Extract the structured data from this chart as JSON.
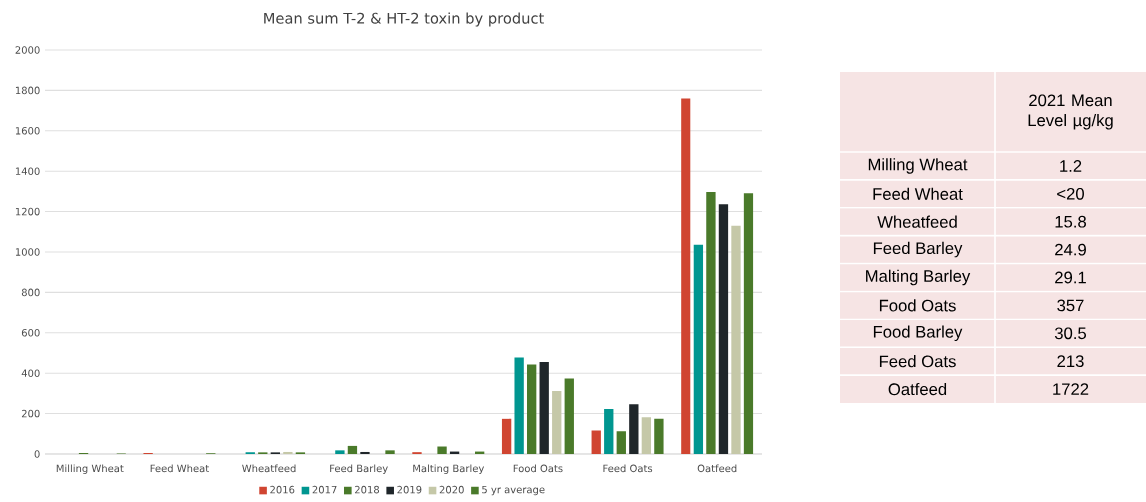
{
  "chart_data": [
    {
      "type": "bar",
      "title": "Mean sum T-2 & HT-2 toxin by product",
      "categories": [
        "Milling Wheat",
        "Feed Wheat",
        "Wheatfeed",
        "Feed Barley",
        "Malting Barley",
        "Food Oats",
        "Feed Oats",
        "Oatfeed"
      ],
      "series": [
        {
          "name": "2016",
          "color": "#d04531",
          "values": [
            0,
            5,
            0,
            0,
            9,
            174,
            116,
            1760
          ]
        },
        {
          "name": "2017",
          "color": "#009690",
          "values": [
            null,
            0,
            8,
            18,
            null,
            478,
            223,
            1036
          ]
        },
        {
          "name": "2018",
          "color": "#4a7a2a",
          "values": [
            5,
            0,
            8,
            40,
            37,
            443,
            112,
            1297
          ]
        },
        {
          "name": "2019",
          "color": "#1f262a",
          "values": [
            0,
            0,
            8,
            10,
            12,
            456,
            246,
            1236
          ]
        },
        {
          "name": "2020",
          "color": "#c5c8a8",
          "values": [
            0,
            0,
            10,
            null,
            null,
            312,
            182,
            1130
          ]
        },
        {
          "name": "5 yr average",
          "color": "#4a7a2a",
          "values": [
            3,
            4,
            8,
            18,
            12,
            374,
            175,
            1291
          ]
        }
      ],
      "ylim": [
        0,
        2000
      ],
      "yticks": [
        0,
        200,
        400,
        600,
        800,
        1000,
        1200,
        1400,
        1600,
        1800,
        2000
      ],
      "grid": "y",
      "legend": "bottom"
    },
    {
      "type": "other",
      "title": "2021 Mean Level µg/kg",
      "categories": [
        "Milling Wheat",
        "Feed Wheat",
        "Wheatfeed",
        "Feed Barley",
        "Malting Barley",
        "Food Oats",
        "Food Barley",
        "Feed Oats",
        "Oatfeed"
      ],
      "value_labels": [
        "1.2",
        "<20",
        "15.8",
        "24.9",
        "29.1",
        "357",
        "30.5",
        "213",
        "1722"
      ]
    }
  ]
}
